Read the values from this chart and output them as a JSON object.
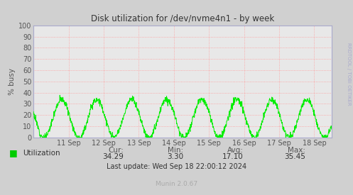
{
  "title": "Disk utilization for /dev/nvme4n1 - by week",
  "ylabel": "% busy",
  "ylim": [
    0,
    100
  ],
  "yticks": [
    0,
    10,
    20,
    30,
    40,
    50,
    60,
    70,
    80,
    90,
    100
  ],
  "xtick_labels": [
    "11 Sep",
    "12 Sep",
    "13 Sep",
    "14 Sep",
    "15 Sep",
    "16 Sep",
    "17 Sep",
    "18 Sep"
  ],
  "line_color": "#00ee00",
  "fig_bg_color": "#d0d0d0",
  "plot_bg_color": "#e8e8e8",
  "grid_color_h": "#ff9999",
  "grid_color_v": "#ff9999",
  "border_color": "#aaaacc",
  "title_color": "#333333",
  "legend_label": "Utilization",
  "legend_color": "#00cc00",
  "cur_val": "34.29",
  "min_val": "3.30",
  "avg_val": "17.10",
  "max_val": "35.45",
  "last_update": "Last update: Wed Sep 18 22:00:12 2024",
  "munin_version": "Munin 2.0.67",
  "rrdtool_text": "RRDTOOL / TOBI OETIKER",
  "tick_label_color": "#555555",
  "stats_label_color": "#555555",
  "stats_value_color": "#333333"
}
